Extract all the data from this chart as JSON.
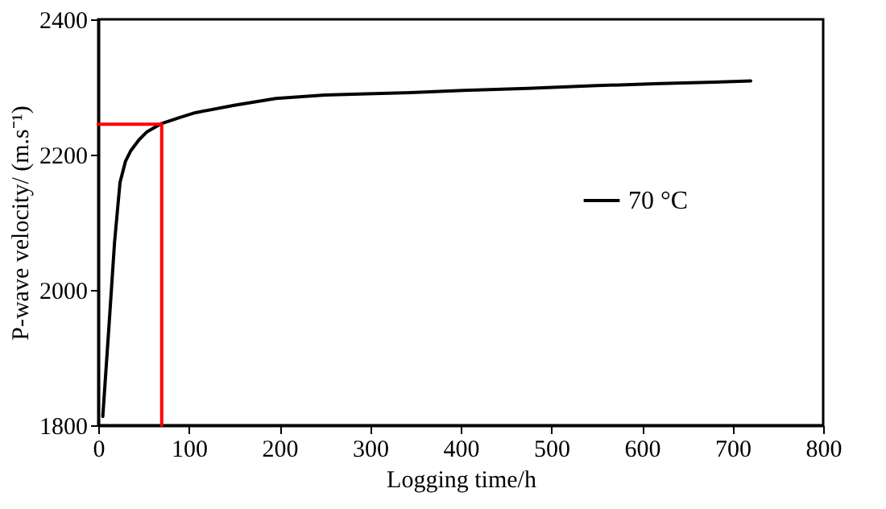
{
  "chart_data": {
    "type": "line",
    "xlabel": "Logging time/h",
    "ylabel": "P-wave velocity/ (m.s⁻¹)",
    "xlim": [
      0,
      800
    ],
    "xticks": [
      0,
      100,
      200,
      300,
      400,
      500,
      600,
      700,
      800
    ],
    "ylim": [
      1800,
      2400
    ],
    "yticks": [
      1800,
      2000,
      2200,
      2400
    ],
    "grid": false,
    "legend": "right",
    "marker": "none",
    "line_style": "solid",
    "series": [
      {
        "name": "70 °C",
        "color": "#000000",
        "x": [
          5,
          12,
          18,
          24,
          30,
          36,
          45,
          54,
          70,
          90,
          107,
          150,
          196,
          250,
          296,
          350,
          403,
          474,
          550,
          620,
          680,
          720
        ],
        "values": [
          1813,
          1950,
          2071,
          2159,
          2190,
          2206,
          2222,
          2234,
          2246,
          2255,
          2262,
          2273,
          2283,
          2288,
          2290,
          2292,
          2295,
          2298,
          2302,
          2305,
          2307,
          2309
        ]
      },
      {
        "color": "#ff0000",
        "x": [
          0,
          70,
          70
        ],
        "values": [
          2245,
          2245,
          1800
        ]
      }
    ]
  }
}
